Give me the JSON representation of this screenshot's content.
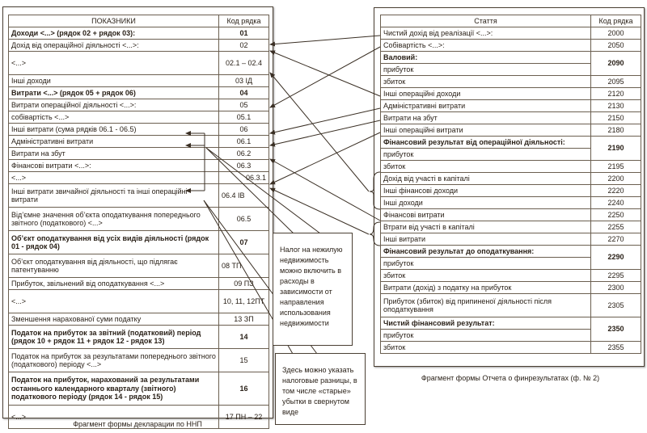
{
  "left": {
    "header": [
      "ПОКАЗНИКИ",
      "Код рядка"
    ],
    "rows": [
      [
        "Доходи <...> (рядок 02 + рядок 03):",
        "01",
        true
      ],
      [
        "Дохід від операційної діяльності <...>:",
        "02",
        false
      ],
      [
        "<...>",
        "02.1 – 02.4",
        false
      ],
      [
        "Інші доходи",
        "03 ІД",
        false
      ],
      [
        "Витрати <...> (рядок 05 + рядок 06)",
        "04",
        true
      ],
      [
        "Витрати операційної діяльності <...>:",
        "05",
        false
      ],
      [
        "собівартість <...>",
        "05.1",
        false
      ],
      [
        "Інші витрати (сума рядків 06.1 - 06.5)",
        "06",
        false
      ],
      [
        "Адміністративні витрати",
        "06.1",
        false
      ],
      [
        "Витрати на збут",
        "06.2",
        false
      ],
      [
        "Фінансові витрати <...>:",
        "06.3",
        false
      ],
      [
        "<...>",
        "06.3.1",
        false
      ],
      [
        "Інші витрати звичайної діяльності та інші операційні витрати",
        "06.4 ІВ",
        false
      ],
      [
        "Від’ємне значення об’єкта оподаткування попереднього звітного (податкового) <...>",
        "06.5",
        false
      ],
      [
        "Об’єкт оподаткування від усіх видів діяльності (рядок 01 - рядок 04)",
        "07",
        true
      ],
      [
        "Об’єкт оподаткування від діяльності, що підлягає патентуванню",
        "08 ТП",
        false
      ],
      [
        "Прибуток, звільнений від оподаткування <...>",
        "09 ПЗ",
        false
      ],
      [
        "<...>",
        "10, 11, 12ПТ",
        false
      ],
      [
        "Зменшення нарахованої суми податку",
        "13 ЗП",
        false
      ],
      [
        "Податок на прибуток за звітний (податковий) період (рядок 10 + рядок 11 + рядок 12 - рядок 13)",
        "14",
        true
      ],
      [
        "Податок на прибуток за результатами попереднього звітного (податкового) періоду <...>",
        "15",
        false
      ],
      [
        "Податок на прибуток, нарахований за результатами останнього календарного кварталу (звітного) податкового періоду (рядок 14 - рядок 15)",
        "16",
        true
      ],
      [
        "<...>",
        "17 ПН – 22",
        false
      ]
    ],
    "caption": "Фрагмент формы декларации по ННП"
  },
  "right": {
    "header": [
      "Стаття",
      "Код рядка"
    ],
    "rows": [
      [
        "Чистий дохід від реалізації <...>:",
        "2000",
        false
      ],
      [
        "Собівартість <...>:",
        "2050",
        false
      ],
      [
        "Валовий:",
        "2090",
        true
      ],
      [
        "прибуток",
        "",
        false
      ],
      [
        "збиток",
        "2095",
        false
      ],
      [
        "Інші операційні доходи",
        "2120",
        false
      ],
      [
        "Адміністративні витрати",
        "2130",
        false
      ],
      [
        "Витрати на збут",
        "2150",
        false
      ],
      [
        "Інші операційні витрати",
        "2180",
        false
      ],
      [
        "Фінансовий результат від операційної діяльності:",
        "2190",
        true
      ],
      [
        "прибуток",
        "",
        false
      ],
      [
        "збиток",
        "2195",
        false
      ],
      [
        "Дохід від участі в капіталі",
        "2200",
        false
      ],
      [
        "Інші фінансові доходи",
        "2220",
        false
      ],
      [
        "Інші доходи",
        "2240",
        false
      ],
      [
        "Фінансові витрати",
        "2250",
        false
      ],
      [
        "Втрати від участі в капіталі",
        "2255",
        false
      ],
      [
        "Інші витрати",
        "2270",
        false
      ],
      [
        "Фінансовий результат до оподаткування:",
        "2290",
        true
      ],
      [
        "прибуток",
        "",
        false
      ],
      [
        "збиток",
        "2295",
        false
      ],
      [
        "Витрати (дохід) з податку на прибуток",
        "2300",
        false
      ],
      [
        "Прибуток (збиток) від припиненої діяльності після оподаткування",
        "2305",
        false
      ],
      [
        "Чистий фінансовий результат:",
        "2350",
        true
      ],
      [
        "прибуток",
        "",
        false
      ],
      [
        "збиток",
        "2355",
        false
      ]
    ],
    "caption": "Фрагмент формы Отчета о финрезультатах (ф. № 2)"
  },
  "callouts": [
    "Налог на нежилую недвижимость можно включить в расходы в зависимости от направления использования недвижимости",
    "Здесь можно указать налоговые разницы, в том числе «старые» убытки в свернутом виде"
  ],
  "colors": {
    "line": "#3a2f24",
    "border": "#6b5f50"
  }
}
